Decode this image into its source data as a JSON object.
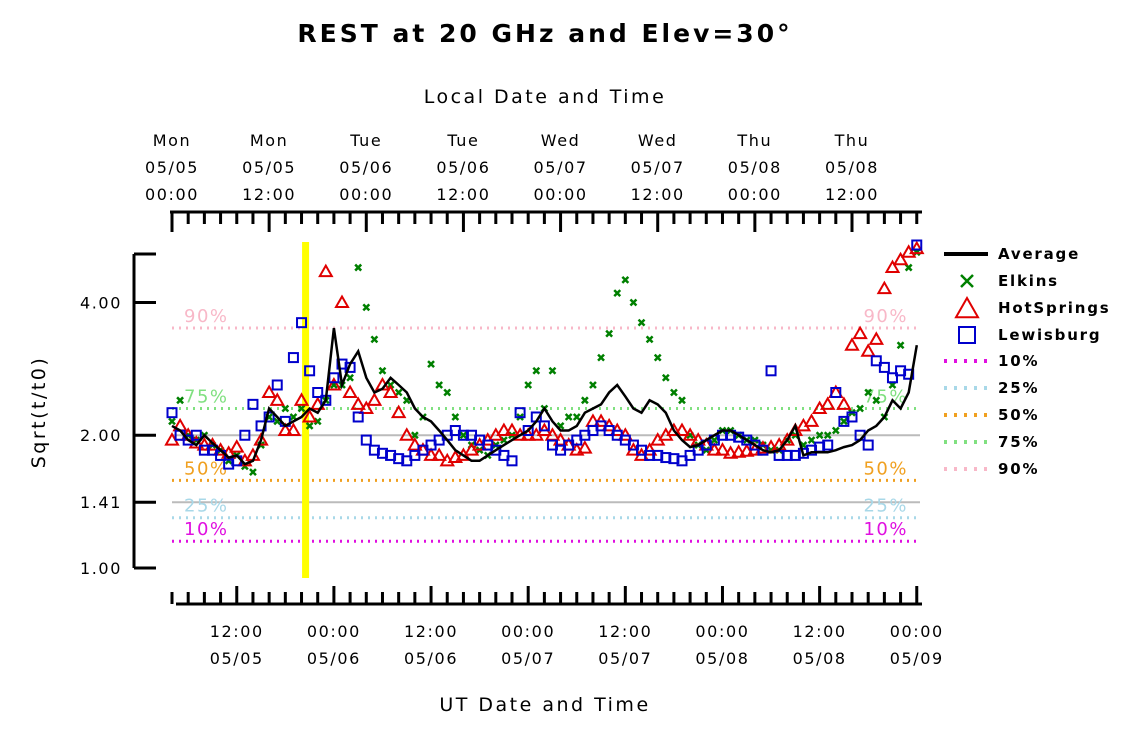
{
  "chart_data": {
    "type": "scatter",
    "title": "REST at 20 GHz and Elev=30°",
    "top_axis_title": "Local Date and Time",
    "xlabel": "UT Date and Time",
    "ylabel": "Sqrt(t/t0)",
    "y_scale": "log",
    "ylim": [
      1.0,
      5.4
    ],
    "x_range_hours": [
      0,
      92.4
    ],
    "y_ticks": [
      {
        "value": 1.0,
        "label": "1.00"
      },
      {
        "value": 1.41,
        "label": "1.41"
      },
      {
        "value": 2.0,
        "label": "2.00"
      },
      {
        "value": 4.0,
        "label": "4.00"
      }
    ],
    "gridlines": [
      1.41,
      2.0
    ],
    "x_tick_labels": [
      {
        "hour": 8,
        "time": "12:00",
        "date": "05/05"
      },
      {
        "hour": 20,
        "time": "00:00",
        "date": "05/06"
      },
      {
        "hour": 32,
        "time": "12:00",
        "date": "05/06"
      },
      {
        "hour": 44,
        "time": "00:00",
        "date": "05/07"
      },
      {
        "hour": 56,
        "time": "12:00",
        "date": "05/07"
      },
      {
        "hour": 68,
        "time": "00:00",
        "date": "05/08"
      },
      {
        "hour": 80,
        "time": "12:00",
        "date": "05/08"
      },
      {
        "hour": 92,
        "time": "00:00",
        "date": "05/09"
      }
    ],
    "top_tick_labels": [
      {
        "hour": 0,
        "day": "Mon",
        "date": "05/05",
        "time": "00:00"
      },
      {
        "hour": 12,
        "day": "Mon",
        "date": "05/05",
        "time": "12:00"
      },
      {
        "hour": 24,
        "day": "Tue",
        "date": "05/06",
        "time": "00:00"
      },
      {
        "hour": 36,
        "day": "Tue",
        "date": "05/06",
        "time": "12:00"
      },
      {
        "hour": 48,
        "day": "Wed",
        "date": "05/07",
        "time": "00:00"
      },
      {
        "hour": 60,
        "day": "Wed",
        "date": "05/07",
        "time": "12:00"
      },
      {
        "hour": 72,
        "day": "Thu",
        "date": "05/08",
        "time": "00:00"
      },
      {
        "hour": 84,
        "day": "Thu",
        "date": "05/08",
        "time": "12:00"
      }
    ],
    "current_time_marker_hour": 16.5,
    "percentile_lines": [
      {
        "label": "10%",
        "value": 1.15,
        "color": "#e010e0"
      },
      {
        "label": "25%",
        "value": 1.3,
        "color": "#a8d8e8"
      },
      {
        "label": "50%",
        "value": 1.58,
        "color": "#f0a020"
      },
      {
        "label": "75%",
        "value": 2.3,
        "color": "#80e080"
      },
      {
        "label": "90%",
        "value": 3.5,
        "color": "#f8b8c8"
      }
    ],
    "series": [
      {
        "name": "Average",
        "marker": "line",
        "color": "#000000",
        "x": [
          0,
          1,
          2,
          3,
          4,
          5,
          6,
          7,
          8,
          9,
          10,
          11,
          12,
          13,
          14,
          15,
          16,
          17,
          18,
          19,
          20,
          21,
          22,
          23,
          24,
          25,
          26,
          27,
          28,
          29,
          30,
          31,
          32,
          33,
          34,
          35,
          36,
          37,
          38,
          39,
          40,
          41,
          42,
          43,
          44,
          45,
          46,
          47,
          48,
          49,
          50,
          51,
          52,
          53,
          54,
          55,
          56,
          57,
          58,
          59,
          60,
          61,
          62,
          63,
          64,
          65,
          66,
          67,
          68,
          69,
          70,
          71,
          72,
          73,
          74,
          75,
          76,
          77,
          78,
          79,
          80,
          81,
          82,
          83,
          84,
          85,
          86,
          87,
          88,
          89,
          90,
          91,
          92
        ],
        "y": [
          2.1,
          2.05,
          1.95,
          1.9,
          2.0,
          1.92,
          1.85,
          1.78,
          1.8,
          1.72,
          1.75,
          1.95,
          2.3,
          2.2,
          2.1,
          2.15,
          2.2,
          2.3,
          2.25,
          2.4,
          3.5,
          2.6,
          2.9,
          3.1,
          2.7,
          2.5,
          2.55,
          2.7,
          2.6,
          2.5,
          2.3,
          2.2,
          2.15,
          2.05,
          1.95,
          1.85,
          1.8,
          1.75,
          1.75,
          1.8,
          1.85,
          1.9,
          1.95,
          2.0,
          2.05,
          2.15,
          2.3,
          2.15,
          2.05,
          2.05,
          2.1,
          2.25,
          2.3,
          2.35,
          2.5,
          2.6,
          2.45,
          2.3,
          2.25,
          2.4,
          2.35,
          2.25,
          2.05,
          1.95,
          1.88,
          1.9,
          1.95,
          2.0,
          2.05,
          2.05,
          2.0,
          1.95,
          1.9,
          1.85,
          1.83,
          1.85,
          1.95,
          2.1,
          1.8,
          1.83,
          1.83,
          1.83,
          1.85,
          1.88,
          1.9,
          1.95,
          2.05,
          2.1,
          2.2,
          2.4,
          2.3,
          2.5,
          3.2
        ]
      },
      {
        "name": "Elkins",
        "marker": "x",
        "color": "#008000",
        "x": [
          0,
          1,
          2,
          3,
          4,
          5,
          6,
          7,
          8,
          9,
          10,
          11,
          12,
          13,
          14,
          15,
          16,
          17,
          18,
          19,
          20,
          21,
          22,
          23,
          24,
          25,
          26,
          27,
          28,
          29,
          30,
          31,
          32,
          33,
          34,
          35,
          36,
          37,
          38,
          39,
          40,
          41,
          42,
          43,
          44,
          45,
          46,
          47,
          48,
          49,
          50,
          51,
          52,
          53,
          54,
          55,
          56,
          57,
          58,
          59,
          60,
          61,
          62,
          63,
          64,
          65,
          66,
          67,
          68,
          69,
          70,
          71,
          72,
          73,
          74,
          75,
          76,
          77,
          78,
          79,
          80,
          81,
          82,
          83,
          84,
          85,
          86,
          87,
          88,
          89,
          90,
          91,
          92
        ],
        "y": [
          2.15,
          2.4,
          2.0,
          1.95,
          2.0,
          1.9,
          1.85,
          1.75,
          1.8,
          1.7,
          1.65,
          1.9,
          2.2,
          2.15,
          2.3,
          2.2,
          2.3,
          2.1,
          2.15,
          2.4,
          2.6,
          2.6,
          2.7,
          4.8,
          3.9,
          3.3,
          2.8,
          2.6,
          2.5,
          2.4,
          2.0,
          2.2,
          2.9,
          2.6,
          2.5,
          2.2,
          2.0,
          1.9,
          1.85,
          1.8,
          1.9,
          1.95,
          2.0,
          2.2,
          2.6,
          2.8,
          2.3,
          2.8,
          2.1,
          2.2,
          2.2,
          2.4,
          2.6,
          3.0,
          3.4,
          4.2,
          4.5,
          4.0,
          3.6,
          3.3,
          3.0,
          2.7,
          2.5,
          2.4,
          2.0,
          1.9,
          1.85,
          1.95,
          2.05,
          2.05,
          2.0,
          1.95,
          1.95,
          1.9,
          1.85,
          1.85,
          1.95,
          2.0,
          1.9,
          1.95,
          2.0,
          2.0,
          2.05,
          2.15,
          2.25,
          2.3,
          2.5,
          2.4,
          2.2,
          2.6,
          3.2,
          4.8,
          5.2
        ]
      },
      {
        "name": "HotSprings",
        "marker": "triangle",
        "color": "#e00000",
        "x": [
          0,
          1,
          2,
          3,
          4,
          5,
          6,
          7,
          8,
          9,
          10,
          11,
          12,
          13,
          14,
          15,
          16,
          17,
          18,
          19,
          20,
          21,
          22,
          23,
          24,
          25,
          26,
          27,
          28,
          29,
          30,
          31,
          32,
          33,
          34,
          35,
          36,
          37,
          38,
          39,
          40,
          41,
          42,
          43,
          44,
          45,
          46,
          47,
          48,
          49,
          50,
          51,
          52,
          53,
          54,
          55,
          56,
          57,
          58,
          59,
          60,
          61,
          62,
          63,
          64,
          65,
          66,
          67,
          68,
          69,
          70,
          71,
          72,
          73,
          74,
          75,
          76,
          77,
          78,
          79,
          80,
          81,
          82,
          83,
          84,
          85,
          86,
          87,
          88,
          89,
          90,
          91,
          92
        ],
        "y": [
          1.95,
          2.1,
          2.0,
          1.92,
          1.9,
          1.9,
          1.85,
          1.82,
          1.88,
          1.75,
          1.8,
          1.95,
          2.5,
          2.4,
          2.05,
          2.05,
          2.4,
          2.2,
          2.35,
          4.7,
          2.6,
          4.0,
          2.5,
          2.35,
          2.3,
          2.4,
          2.6,
          2.5,
          2.25,
          2.0,
          1.9,
          1.85,
          1.8,
          1.8,
          1.75,
          1.78,
          1.8,
          1.85,
          1.9,
          1.95,
          2.0,
          2.05,
          2.05,
          2.0,
          2.0,
          2.0,
          2.05,
          2.0,
          1.95,
          1.9,
          1.85,
          1.87,
          2.15,
          2.15,
          2.1,
          2.05,
          2.0,
          1.85,
          1.8,
          1.85,
          1.95,
          2.0,
          2.05,
          2.05,
          2.0,
          1.95,
          1.9,
          1.85,
          1.85,
          1.82,
          1.83,
          1.84,
          1.85,
          1.87,
          1.88,
          1.9,
          1.95,
          2.05,
          2.1,
          2.15,
          2.3,
          2.35,
          2.5,
          2.35,
          3.2,
          3.4,
          3.1,
          3.3,
          4.3,
          4.8,
          5.0,
          5.2,
          5.3
        ]
      },
      {
        "name": "Lewisburg",
        "marker": "square",
        "color": "#0000cc",
        "x": [
          0,
          1,
          2,
          3,
          4,
          5,
          6,
          7,
          8,
          9,
          10,
          11,
          12,
          13,
          14,
          15,
          16,
          17,
          18,
          19,
          20,
          21,
          22,
          23,
          24,
          25,
          26,
          27,
          28,
          29,
          30,
          31,
          32,
          33,
          34,
          35,
          36,
          37,
          38,
          39,
          40,
          41,
          42,
          43,
          44,
          45,
          46,
          47,
          48,
          49,
          50,
          51,
          52,
          53,
          54,
          55,
          56,
          57,
          58,
          59,
          60,
          61,
          62,
          63,
          64,
          65,
          66,
          67,
          68,
          69,
          70,
          71,
          72,
          73,
          74,
          75,
          76,
          77,
          78,
          79,
          80,
          81,
          82,
          83,
          84,
          85,
          86,
          87,
          88,
          89,
          90,
          91,
          92
        ],
        "y": [
          2.25,
          2.0,
          1.95,
          2.0,
          1.85,
          1.85,
          1.8,
          1.72,
          1.75,
          2.0,
          2.35,
          2.1,
          2.2,
          2.6,
          2.15,
          3.0,
          3.6,
          2.8,
          2.5,
          2.4,
          2.7,
          2.9,
          2.85,
          2.2,
          1.95,
          1.85,
          1.82,
          1.8,
          1.77,
          1.75,
          1.8,
          1.85,
          1.9,
          1.95,
          2.0,
          2.05,
          2.0,
          2.0,
          1.95,
          1.9,
          1.85,
          1.8,
          1.75,
          2.25,
          2.05,
          2.2,
          2.1,
          1.9,
          1.85,
          1.9,
          1.95,
          2.0,
          2.05,
          2.1,
          2.05,
          2.0,
          1.95,
          1.9,
          1.85,
          1.8,
          1.8,
          1.78,
          1.77,
          1.75,
          1.8,
          1.85,
          1.9,
          1.95,
          2.0,
          2.0,
          1.98,
          1.95,
          1.9,
          1.85,
          2.8,
          1.8,
          1.8,
          1.8,
          1.82,
          1.85,
          1.88,
          1.9,
          2.5,
          2.15,
          2.2,
          2.0,
          1.9,
          2.95,
          2.85,
          2.7,
          2.8,
          2.75,
          5.4
        ]
      }
    ],
    "legend": [
      {
        "name": "Average",
        "marker": "line",
        "color": "#000000"
      },
      {
        "name": "Elkins",
        "marker": "x",
        "color": "#008000"
      },
      {
        "name": "HotSprings",
        "marker": "triangle",
        "color": "#e00000"
      },
      {
        "name": "Lewisburg",
        "marker": "square",
        "color": "#0000cc"
      },
      {
        "name": "10%",
        "marker": "dotted",
        "color": "#e010e0"
      },
      {
        "name": "25%",
        "marker": "dotted",
        "color": "#a8d8e8"
      },
      {
        "name": "50%",
        "marker": "dotted",
        "color": "#f0a020"
      },
      {
        "name": "75%",
        "marker": "dotted",
        "color": "#80e080"
      },
      {
        "name": "90%",
        "marker": "dotted",
        "color": "#f8b8c8"
      }
    ],
    "grid": false,
    "legend_position": "right"
  }
}
